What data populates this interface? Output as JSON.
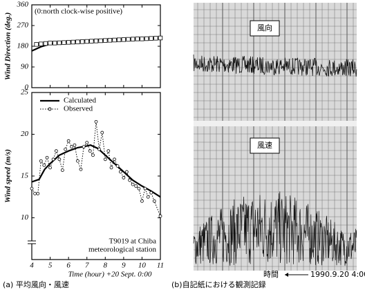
{
  "chart_data": [
    {
      "type": "line",
      "ylabel": "Wind Direction (deg.)",
      "annotation": "(0:north clock-wise positive)",
      "xlim": [
        4,
        11
      ],
      "xticks": [
        4,
        5,
        6,
        7,
        8,
        9,
        10,
        11
      ],
      "ylim": [
        0,
        360
      ],
      "yticks": [
        0,
        90,
        180,
        270,
        360
      ],
      "series": [
        {
          "color": "#000000",
          "line_style": "solid",
          "marker": null,
          "x": [
            4,
            4.5,
            5,
            5.5,
            6,
            7,
            8,
            9,
            10,
            11
          ],
          "values": [
            160,
            178,
            190,
            196,
            200,
            205,
            208,
            211,
            213,
            215
          ]
        },
        {
          "color": "#000000",
          "line_style": "none",
          "marker": "square",
          "x": [
            4.25,
            4.5,
            4.75,
            5,
            5.25,
            5.5,
            5.75,
            6,
            6.25,
            6.5,
            6.75,
            7,
            7.25,
            7.5,
            7.75,
            8,
            8.25,
            8.5,
            8.75,
            9,
            9.25,
            9.5,
            9.75,
            10,
            10.25,
            10.5,
            10.75,
            11
          ],
          "values": [
            188,
            190,
            192,
            194,
            194,
            195,
            196,
            197,
            198,
            199,
            200,
            201,
            202,
            203,
            204,
            205,
            206,
            207,
            208,
            209,
            210,
            211,
            212,
            212,
            213,
            214,
            215,
            216
          ]
        }
      ]
    },
    {
      "type": "line",
      "ylabel": "Wind speed (m/s)",
      "xlabel": "Time (hour) +20 Sept. 0:00",
      "annotation": [
        "T9019 at Chiba",
        "meteorological station"
      ],
      "xlim": [
        4,
        11
      ],
      "xticks": [
        4,
        5,
        6,
        7,
        8,
        9,
        10,
        11
      ],
      "ylim": [
        5,
        25
      ],
      "yticks": [
        10,
        15,
        20,
        25
      ],
      "series": [
        {
          "name": "Calculated",
          "color": "#000000",
          "line_style": "solid",
          "marker": null,
          "x": [
            4,
            4.4,
            4.7,
            5,
            5.5,
            6,
            6.5,
            7,
            7.2,
            7.6,
            8,
            8.5,
            9,
            9.5,
            10,
            10.5,
            11
          ],
          "values": [
            14.3,
            14.6,
            15.8,
            16.5,
            17.5,
            18,
            18.4,
            18.6,
            18.7,
            18.3,
            17.5,
            16.5,
            15.5,
            14.5,
            13.8,
            13.2,
            12.5
          ]
        },
        {
          "name": "Observed",
          "color": "#000000",
          "line_style": "dotted",
          "marker": "circle",
          "x": [
            4,
            4.17,
            4.33,
            4.5,
            4.67,
            4.83,
            5,
            5.17,
            5.33,
            5.5,
            5.67,
            5.83,
            6,
            6.17,
            6.33,
            6.5,
            6.67,
            6.83,
            7,
            7.17,
            7.33,
            7.5,
            7.67,
            7.83,
            8,
            8.17,
            8.33,
            8.5,
            8.67,
            8.83,
            9,
            9.17,
            9.33,
            9.5,
            9.67,
            9.83,
            10,
            10.17,
            10.33,
            10.5,
            10.67,
            11
          ],
          "values": [
            13.5,
            12.9,
            12.9,
            16.8,
            16.3,
            17.2,
            16,
            17,
            18,
            17,
            15.7,
            18.2,
            19.2,
            18.5,
            18.7,
            16.8,
            15.8,
            18.5,
            19,
            18,
            17.5,
            21.5,
            18.2,
            20.2,
            17,
            18,
            16,
            17,
            16.2,
            15.5,
            14.8,
            15.5,
            14.5,
            14,
            13.8,
            13.5,
            12,
            13.5,
            12.5,
            13,
            12,
            10.2
          ]
        }
      ]
    }
  ],
  "recorder": {
    "direction_label": "風向",
    "speed_label": "風速",
    "time_label": "時間",
    "start_time": "1990.9.20 4:00"
  },
  "captions": [
    "(a) 平均風向・風速",
    "(b)自記紙における観測記録"
  ]
}
